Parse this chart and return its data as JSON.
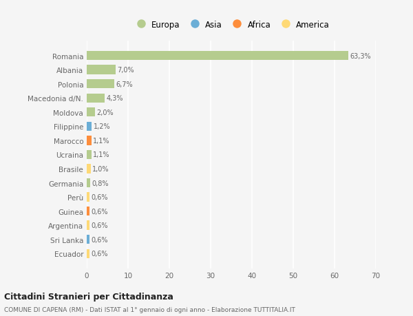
{
  "countries": [
    "Romania",
    "Albania",
    "Polonia",
    "Macedonia d/N.",
    "Moldova",
    "Filippine",
    "Marocco",
    "Ucraina",
    "Brasile",
    "Germania",
    "Perù",
    "Guinea",
    "Argentina",
    "Sri Lanka",
    "Ecuador"
  ],
  "values": [
    63.3,
    7.0,
    6.7,
    4.3,
    2.0,
    1.2,
    1.1,
    1.1,
    1.0,
    0.8,
    0.6,
    0.6,
    0.6,
    0.6,
    0.6
  ],
  "labels": [
    "63,3%",
    "7,0%",
    "6,7%",
    "4,3%",
    "2,0%",
    "1,2%",
    "1,1%",
    "1,1%",
    "1,0%",
    "0,8%",
    "0,6%",
    "0,6%",
    "0,6%",
    "0,6%",
    "0,6%"
  ],
  "continents": [
    "Europa",
    "Europa",
    "Europa",
    "Europa",
    "Europa",
    "Asia",
    "Africa",
    "Europa",
    "America",
    "Europa",
    "America",
    "Africa",
    "America",
    "Asia",
    "America"
  ],
  "continent_colors": {
    "Europa": "#b5cc8e",
    "Asia": "#6baed6",
    "Africa": "#fd8d3c",
    "America": "#fed976"
  },
  "legend_order": [
    "Europa",
    "Asia",
    "Africa",
    "America"
  ],
  "legend_colors": [
    "#b5cc8e",
    "#6baed6",
    "#fd8d3c",
    "#fed976"
  ],
  "xlim": [
    0,
    70
  ],
  "xticks": [
    0,
    10,
    20,
    30,
    40,
    50,
    60,
    70
  ],
  "title": "Cittadini Stranieri per Cittadinanza",
  "subtitle": "COMUNE DI CAPENA (RM) - Dati ISTAT al 1° gennaio di ogni anno - Elaborazione TUTTITALIA.IT",
  "background_color": "#f5f5f5",
  "bar_height": 0.65,
  "grid_color": "#ffffff",
  "text_color": "#666666"
}
